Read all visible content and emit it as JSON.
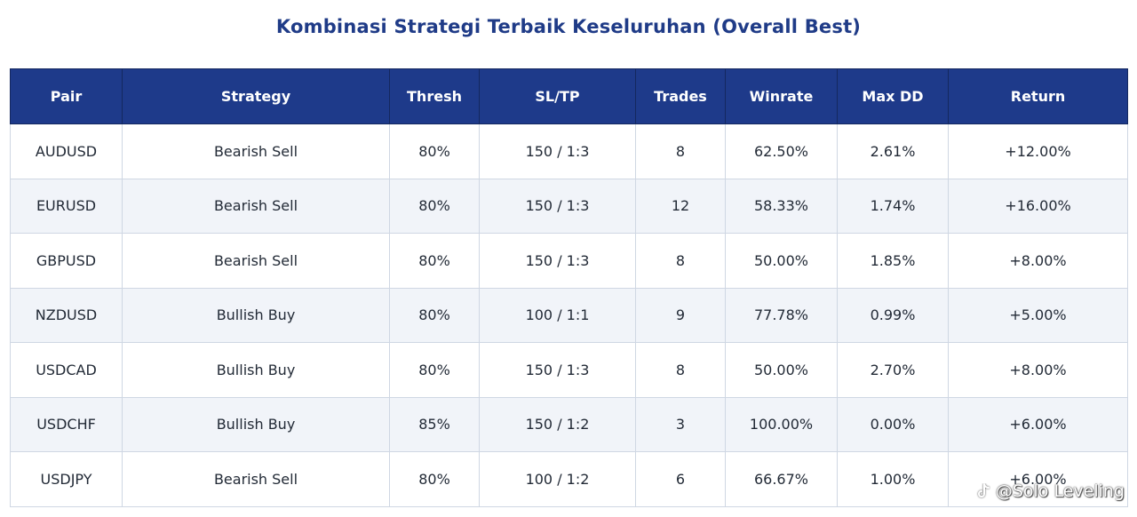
{
  "title": "Kombinasi Strategi Terbaik Keseluruhan (Overall Best)",
  "columns": [
    "Pair",
    "Strategy",
    "Thresh",
    "SL/TP",
    "Trades",
    "Winrate",
    "Max DD",
    "Return"
  ],
  "rows": [
    [
      "AUDUSD",
      "Bearish Sell",
      "80%",
      "150 / 1:3",
      "8",
      "62.50%",
      "2.61%",
      "+12.00%"
    ],
    [
      "EURUSD",
      "Bearish Sell",
      "80%",
      "150 / 1:3",
      "12",
      "58.33%",
      "1.74%",
      "+16.00%"
    ],
    [
      "GBPUSD",
      "Bearish Sell",
      "80%",
      "150 / 1:3",
      "8",
      "50.00%",
      "1.85%",
      "+8.00%"
    ],
    [
      "NZDUSD",
      "Bullish Buy",
      "80%",
      "100 / 1:1",
      "9",
      "77.78%",
      "0.99%",
      "+5.00%"
    ],
    [
      "USDCAD",
      "Bullish Buy",
      "80%",
      "150 / 1:3",
      "8",
      "50.00%",
      "2.70%",
      "+8.00%"
    ],
    [
      "USDCHF",
      "Bullish Buy",
      "85%",
      "150 / 1:2",
      "3",
      "100.00%",
      "0.00%",
      "+6.00%"
    ],
    [
      "USDJPY",
      "Bearish Sell",
      "80%",
      "100 / 1:2",
      "6",
      "66.67%",
      "1.00%",
      "+6.00%"
    ]
  ],
  "watermark": {
    "text": "@Solo Leveling",
    "icon": "tiktok-icon"
  },
  "colors": {
    "title": "#1f3b87",
    "header_bg": "#1e3a8a",
    "header_text": "#ffffff",
    "row_alt_bg": "#f1f4f9",
    "border": "#cfd7e3"
  }
}
